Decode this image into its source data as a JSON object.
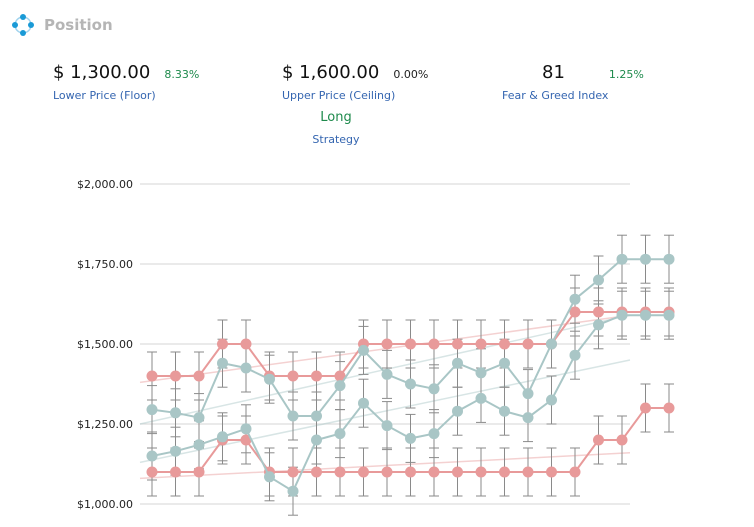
{
  "header": {
    "title": "Position",
    "logo_icon": "dots-circle-logo-icon"
  },
  "stats": {
    "floor": {
      "value": "$ 1,300.00",
      "change": "8.33%",
      "label": "Lower Price (Floor)"
    },
    "ceiling": {
      "value": "$ 1,600.00",
      "change": "0.00%",
      "label": "Upper Price (Ceiling)"
    },
    "fear_greed": {
      "value": "81",
      "change": "1.25%",
      "label": "Fear & Greed Index"
    }
  },
  "strategy": {
    "value": "Long",
    "label": "Strategy"
  },
  "colors": {
    "red": "#e89a9a",
    "teal": "#a9c6c6",
    "positive": "#1e8a4c",
    "label": "#3465b0"
  },
  "chart_data": {
    "type": "line",
    "x": [
      1,
      2,
      3,
      4,
      5,
      6,
      7,
      8,
      9,
      10,
      11,
      12,
      13,
      14,
      15,
      16,
      17,
      18,
      19,
      20,
      21,
      22,
      23
    ],
    "ylim": [
      1000,
      2000
    ],
    "yticks": [
      1000,
      1250,
      1500,
      1750,
      2000
    ],
    "ytick_labels": [
      "$1,000.00",
      "$1,250.00",
      "$1,500.00",
      "$1,750.00",
      "$2,000.00"
    ],
    "grid": true,
    "error_bar": 75,
    "series": [
      {
        "color": "red",
        "values": [
          1400,
          1400,
          1400,
          1500,
          1500,
          1400,
          1400,
          1400,
          1400,
          1500,
          1500,
          1500,
          1500,
          1500,
          1500,
          1500,
          1500,
          1500,
          1600,
          1600,
          1600,
          1600,
          1600
        ]
      },
      {
        "color": "red",
        "values": [
          1100,
          1100,
          1100,
          1200,
          1200,
          1100,
          1100,
          1100,
          1100,
          1100,
          1100,
          1100,
          1100,
          1100,
          1100,
          1100,
          1100,
          1100,
          1100,
          1200,
          1200,
          1300,
          1300
        ]
      },
      {
        "color": "teal",
        "values": [
          1295,
          1285,
          1270,
          1440,
          1425,
          1390,
          1275,
          1275,
          1370,
          1480,
          1405,
          1375,
          1360,
          1440,
          1410,
          1440,
          1345,
          1500,
          1640,
          1700,
          1765,
          1765,
          1765
        ]
      },
      {
        "color": "teal",
        "values": [
          1150,
          1165,
          1185,
          1210,
          1235,
          1085,
          1040,
          1200,
          1220,
          1315,
          1245,
          1205,
          1220,
          1290,
          1330,
          1290,
          1270,
          1325,
          1465,
          1560,
          1590,
          1590,
          1590
        ]
      }
    ],
    "trendlines": [
      {
        "color": "red",
        "from": 1380,
        "to": 1590
      },
      {
        "color": "red",
        "from": 1080,
        "to": 1160
      },
      {
        "color": "teal",
        "from": 1250,
        "to": 1590
      },
      {
        "color": "teal",
        "from": 1130,
        "to": 1450
      }
    ]
  }
}
